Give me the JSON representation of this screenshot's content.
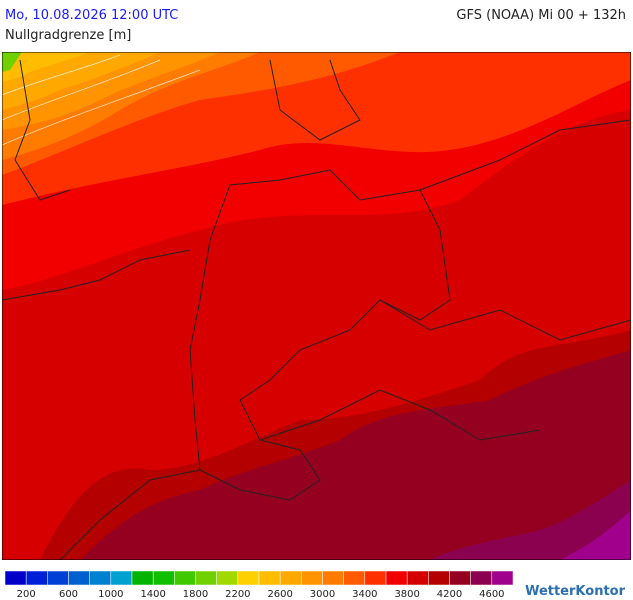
{
  "header": {
    "valid_time": "Mo, 10.08.2026 12:00 UTC",
    "model_run": "GFS (NOAA) Mi 00 + 132h",
    "parameter": "Nullgradgrenze [m]"
  },
  "legend": {
    "colors": [
      "#0000c8",
      "#0020d8",
      "#0040d4",
      "#0060d0",
      "#0080d0",
      "#00a0d0",
      "#00b400",
      "#10c000",
      "#40c800",
      "#70d000",
      "#a0d800",
      "#ffd000",
      "#ffbc00",
      "#ffa800",
      "#ff9400",
      "#ff7c00",
      "#ff5a00",
      "#ff3000",
      "#f00000",
      "#d40000",
      "#b40000",
      "#960020",
      "#8c0050",
      "#a0008c"
    ],
    "ticks": [
      200,
      600,
      1000,
      1400,
      1800,
      2200,
      2600,
      3000,
      3400,
      3800,
      4200,
      4600
    ]
  },
  "logo": "WetterKontor"
}
